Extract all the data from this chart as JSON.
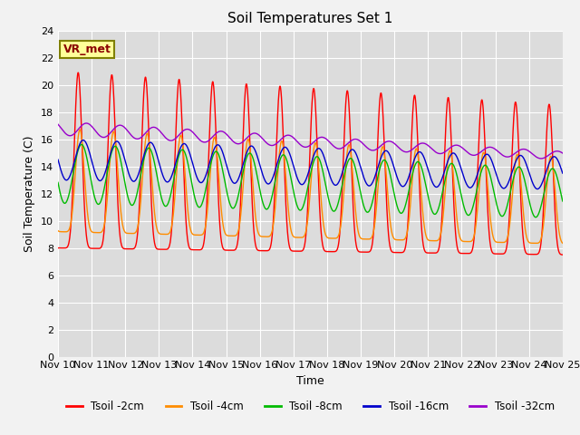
{
  "title": "Soil Temperatures Set 1",
  "xlabel": "Time",
  "ylabel": "Soil Temperature (C)",
  "annotation": "VR_met",
  "x_tick_labels": [
    "Nov 10",
    "Nov 11",
    "Nov 12",
    "Nov 13",
    "Nov 14",
    "Nov 15",
    "Nov 16",
    "Nov 17",
    "Nov 18",
    "Nov 19",
    "Nov 20",
    "Nov 21",
    "Nov 22",
    "Nov 23",
    "Nov 24",
    "Nov 25"
  ],
  "ylim": [
    0,
    24
  ],
  "yticks": [
    0,
    2,
    4,
    6,
    8,
    10,
    12,
    14,
    16,
    18,
    20,
    22,
    24
  ],
  "legend_labels": [
    "Tsoil -2cm",
    "Tsoil -4cm",
    "Tsoil -8cm",
    "Tsoil -16cm",
    "Tsoil -32cm"
  ],
  "colors": {
    "2cm": "#FF0000",
    "4cm": "#FF8C00",
    "8cm": "#00BB00",
    "16cm": "#0000CC",
    "32cm": "#9900CC"
  },
  "fig_bg": "#F2F2F2",
  "plot_bg": "#DCDCDC",
  "title_fontsize": 11,
  "axis_fontsize": 9,
  "tick_fontsize": 8,
  "n_days": 15,
  "points_per_day": 144
}
